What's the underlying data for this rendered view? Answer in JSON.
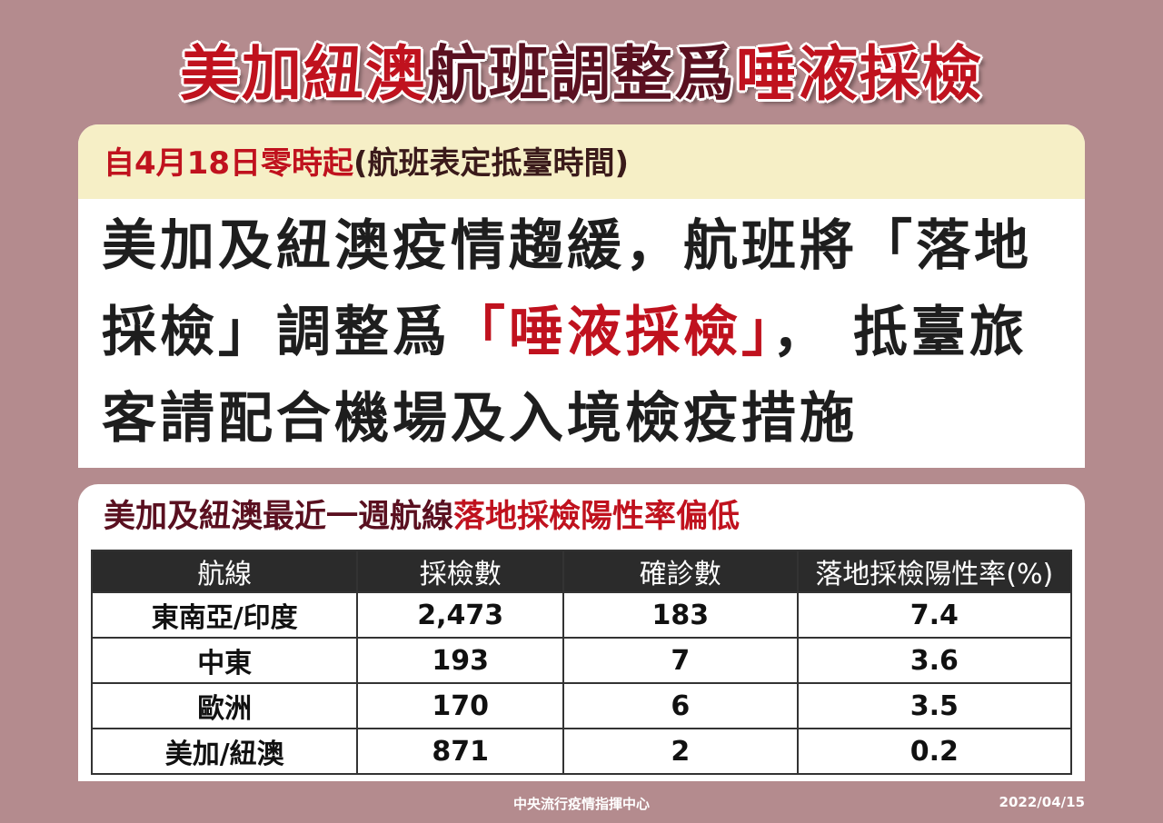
{
  "header": {
    "title": [
      {
        "text": "美加紐澳",
        "color": "#c0121e"
      },
      {
        "text": "航班調整爲",
        "color": "#5a1020"
      },
      {
        "text": "唾液採檢",
        "color": "#c0121e"
      }
    ]
  },
  "notice": {
    "subtitle": [
      {
        "text": "自4月18日零時起",
        "color": "#c0121e"
      },
      {
        "text": "(航班表定抵臺時間)",
        "color": "#3a1a1a"
      }
    ],
    "lines": [
      [
        {
          "text": "美加及紐澳疫情趨緩，航班將「落地",
          "color": "#1e1e1e"
        }
      ],
      [
        {
          "text": "採檢」調整爲",
          "color": "#1e1e1e"
        },
        {
          "text": "「唾液採檢」",
          "color": "#c0121e"
        },
        {
          "text": "， 抵臺旅",
          "color": "#1e1e1e"
        }
      ],
      [
        {
          "text": "客請配合機場及入境檢疫措施",
          "color": "#1e1e1e"
        }
      ]
    ]
  },
  "section": {
    "title": [
      {
        "text": "美加及紐澳最近一週航線",
        "color": "#5a1020"
      },
      {
        "text": "落地採檢陽性率偏低",
        "color": "#c0121e"
      }
    ]
  },
  "table": {
    "header": [
      "航線",
      "採檢數",
      "確診數",
      "落地採檢陽性率(%)"
    ],
    "rows": [
      [
        "東南亞/印度",
        "2,473",
        "183",
        "7.4"
      ],
      [
        "中東",
        "193",
        "7",
        "3.6"
      ],
      [
        "歐洲",
        "170",
        "6",
        "3.5"
      ],
      [
        "美加/紐澳",
        "871",
        "2",
        "0.2"
      ]
    ]
  },
  "footer": {
    "source": "中央流行疫情指揮中心",
    "date": "2022/04/15"
  }
}
